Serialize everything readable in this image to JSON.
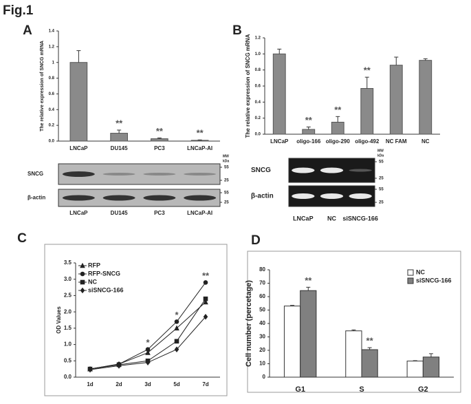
{
  "figure_label": "Fig.1",
  "chart_data": [
    {
      "type": "bar",
      "panel": "A",
      "y_label": "The relative expression of SNCG mRNA",
      "categories": [
        "LNCaP",
        "DU145",
        "PC3",
        "LNCaP-AI"
      ],
      "values": [
        1.0,
        0.1,
        0.03,
        0.01
      ],
      "errors": [
        0.15,
        0.04,
        0.01,
        0.005
      ],
      "color": "#8a8a8a",
      "annotations": [
        null,
        "**",
        "**",
        "**"
      ],
      "ylim": [
        0,
        1.4
      ],
      "yticks": [
        {
          "value": 0,
          "label": "0.0"
        },
        0.2,
        0.4,
        0.6,
        0.8,
        1,
        1.2,
        1.4
      ]
    },
    {
      "type": "bar",
      "panel": "B",
      "y_label": "The relative expression of SNCG mRNA",
      "categories": [
        "LNCaP",
        "oligo-166",
        "oligo-290",
        "oligo-492",
        "NC FAM",
        "NC"
      ],
      "values": [
        1.0,
        0.06,
        0.15,
        0.57,
        0.86,
        0.92
      ],
      "errors": [
        0.06,
        0.03,
        0.07,
        0.14,
        0.1,
        0.02
      ],
      "color": "#8a8a8a",
      "annotations": [
        null,
        "**",
        "**",
        "**",
        null,
        null
      ],
      "ylim": [
        0,
        1.2
      ],
      "yticks": [
        {
          "value": 0,
          "label": "0.0"
        },
        0.2,
        0.4,
        0.6,
        0.8,
        {
          "value": 1,
          "label": "1.0"
        },
        1.2
      ]
    },
    {
      "type": "line",
      "panel": "C",
      "y_label": "OD Values",
      "categories": [
        "1d",
        "2d",
        "3d",
        "5d",
        "7d"
      ],
      "series": [
        {
          "name": "RFP",
          "marker": "triangle",
          "color": "#222222",
          "values": [
            0.25,
            0.4,
            0.75,
            1.5,
            2.3
          ]
        },
        {
          "name": "RFP-SNCG",
          "marker": "circle",
          "color": "#222222",
          "values": [
            0.25,
            0.4,
            0.85,
            1.7,
            2.9
          ]
        },
        {
          "name": "NC",
          "marker": "square",
          "color": "#222222",
          "values": [
            0.25,
            0.38,
            0.5,
            1.1,
            2.4
          ]
        },
        {
          "name": "siSNCG-166",
          "marker": "diamond",
          "color": "#222222",
          "values": [
            0.23,
            0.35,
            0.45,
            0.85,
            1.85
          ]
        }
      ],
      "annotations": [
        null,
        null,
        "*",
        "*",
        "**"
      ],
      "ylim": [
        0,
        3.5
      ],
      "yticks": [
        {
          "value": 0,
          "label": "0.0"
        },
        0.5,
        {
          "value": 1,
          "label": "1.0"
        },
        1.5,
        {
          "value": 2,
          "label": "2.0"
        },
        2.5,
        {
          "value": 3,
          "label": "3.0"
        },
        3.5
      ]
    },
    {
      "type": "grouped-bar",
      "panel": "D",
      "y_label": "Cell number (percetage)",
      "categories": [
        "G1",
        "S",
        "G2"
      ],
      "series": [
        {
          "name": "NC",
          "color": "#ffffff",
          "values": [
            53,
            34.5,
            12
          ],
          "errors": [
            0.5,
            0.7,
            0.3
          ]
        },
        {
          "name": "siSNCG-166",
          "color": "#808080",
          "values": [
            64.5,
            20.5,
            15
          ],
          "errors": [
            2.5,
            1.5,
            2.5
          ]
        }
      ],
      "annotations": [
        "**",
        "**",
        null
      ],
      "ylim": [
        0,
        80
      ],
      "yticks": [
        0,
        10,
        20,
        30,
        40,
        50,
        60,
        70,
        80
      ]
    }
  ],
  "blots": [
    {
      "rows": [
        "SNCG",
        "β-actin"
      ],
      "lanes": [
        "LNCaP",
        "DU145",
        "PC3",
        "LNCaP-AI"
      ],
      "mw": [
        "MW",
        "kDa"
      ],
      "markers": [
        55,
        25,
        55,
        25
      ]
    },
    {
      "rows": [
        "SNCG",
        "β-actin"
      ],
      "lanes": [
        "LNCaP",
        "NC",
        "siSNCG-166"
      ],
      "mw": [
        "MW",
        "kDa"
      ],
      "markers": [
        55,
        25,
        55,
        25
      ]
    }
  ]
}
